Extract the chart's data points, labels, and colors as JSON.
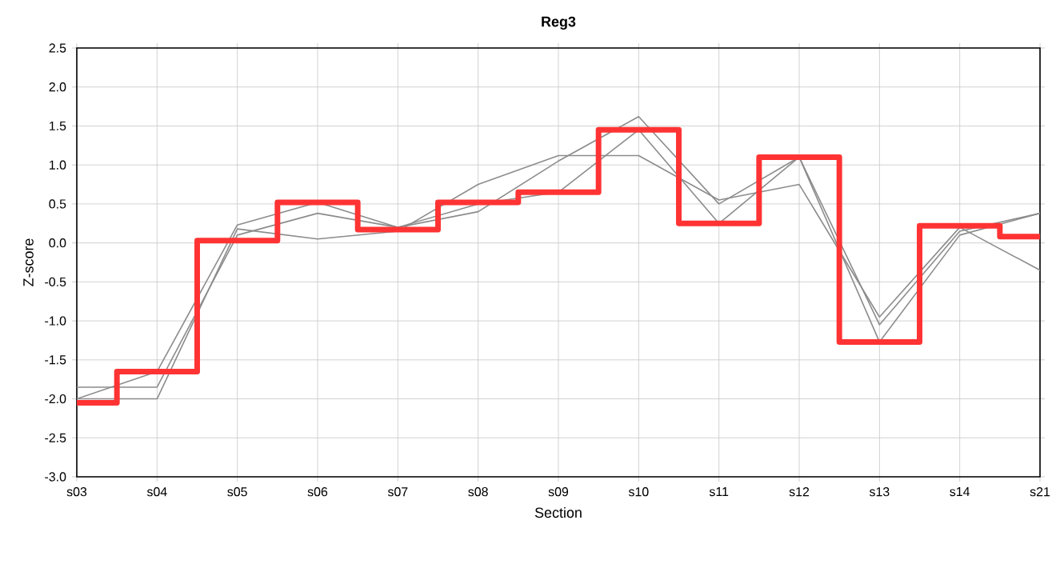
{
  "chart_data": {
    "type": "line",
    "title": "Reg3",
    "xlabel": "Section",
    "ylabel": "Z-score",
    "categories": [
      "s03",
      "s04",
      "s05",
      "s06",
      "s07",
      "s08",
      "s09",
      "s10",
      "s11",
      "s12",
      "s13",
      "s14",
      "s21"
    ],
    "ylim": [
      -3,
      2.5
    ],
    "yticks": [
      {
        "value": -3,
        "label": "-3.0"
      },
      {
        "value": -2.5,
        "label": "-2.5"
      },
      {
        "value": -2,
        "label": "-2.0"
      },
      {
        "value": -1.5,
        "label": "-1.5"
      },
      {
        "value": -1,
        "label": "-1.0"
      },
      {
        "value": -0.5,
        "label": "-0.5"
      },
      {
        "value": 0,
        "label": "0.0"
      },
      {
        "value": 0.5,
        "label": "0.5"
      },
      {
        "value": 1,
        "label": "1.0"
      },
      {
        "value": 1.5,
        "label": "1.5"
      },
      {
        "value": 2,
        "label": "2.0"
      },
      {
        "value": 2.5,
        "label": "2.5"
      }
    ],
    "grid": true,
    "marker": "none",
    "series": [
      {
        "color": "#8c8c8c",
        "values": [
          -1.85,
          -1.85,
          0.1,
          0.38,
          0.2,
          0.4,
          1.05,
          1.62,
          0.5,
          1.1,
          -1.05,
          0.15,
          0.38
        ]
      },
      {
        "color": "#8c8c8c",
        "values": [
          -2.0,
          -2.0,
          0.18,
          0.05,
          0.15,
          0.75,
          1.12,
          1.12,
          0.55,
          0.75,
          -0.95,
          0.2,
          -0.35
        ]
      },
      {
        "color": "#8c8c8c",
        "values": [
          -2.0,
          -1.65,
          0.23,
          0.52,
          0.2,
          0.5,
          0.65,
          1.45,
          0.25,
          1.1,
          -1.27,
          0.1,
          0.38
        ]
      },
      {
        "type": "step",
        "color": "#ff3333",
        "values": [
          -2.05,
          -1.65,
          0.03,
          0.52,
          0.17,
          0.52,
          0.65,
          1.45,
          0.25,
          1.1,
          -1.27,
          0.22,
          0.08
        ]
      }
    ]
  }
}
